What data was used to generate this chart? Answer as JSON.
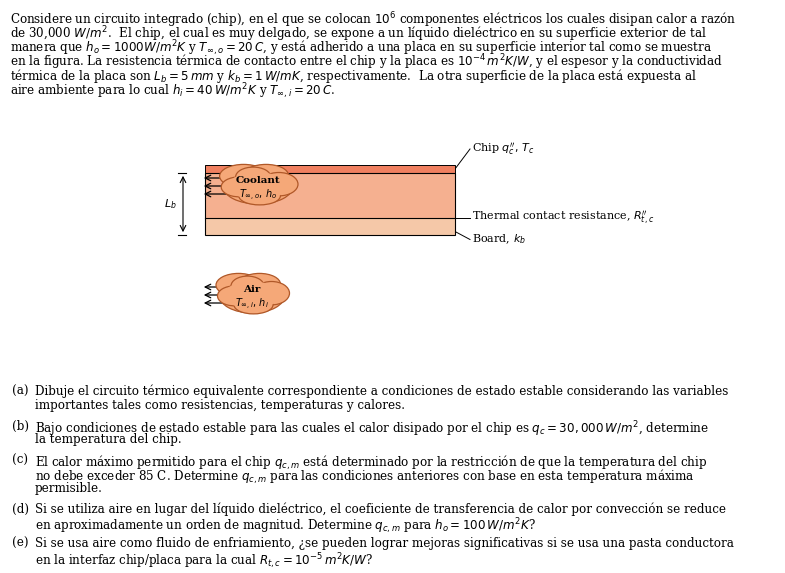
{
  "background_color": "#ffffff",
  "header_lines": [
    "Considere un circuito integrado (chip), en el que se colocan $10^{6}$ componentes eléctricos los cuales disipan calor a razón",
    "de 30,000 $W/m^2$.  El chip, el cual es muy delgado, se expone a un líquido dieléctrico en su superficie exterior de tal",
    "manera que $h_o = 1000W/m^2K$ y $T_{\\infty,o} = 20\\,C$, y está adherido a una placa en su superficie interior tal como se muestra",
    "en la figura. La resistencia térmica de contacto entre el chip y la placa es $10^{-4}\\,m^2K/W$, y el espesor y la conductividad",
    "térmica de la placa son $L_b = 5\\,mm$ y $k_b = 1\\,W/mK$, respectivamente.  La otra superficie de la placa está expuesta al",
    "aire ambiente para lo cual $h_i = 40\\,W/m^2K$ y $T_{\\infty,i} = 20\\,C$."
  ],
  "questions": [
    [
      "(a)",
      "Dibuje el circuito térmico equivalente correspondiente a condiciones de estado estable considerando las variables",
      "importantes tales como resistencias, temperaturas y calores."
    ],
    [
      "(b)",
      "Bajo condiciones de estado estable para las cuales el calor disipado por el chip es $q_c = 30,000\\,W/m^2$, determine",
      "la temperatura del chip."
    ],
    [
      "(c)",
      "El calor máximo permitido para el chip $q_{c,m}$ está determinado por la restricción de que la temperatura del chip",
      "no debe exceder 85 C. Determine $q_{c,m}$ para las condiciones anteriores con base en esta temperatura máxima",
      "permisible."
    ],
    [
      "(d)",
      "Si se utiliza aire en lugar del líquido dieléctrico, el coeficiente de transferencia de calor por convección se reduce",
      "en aproximadamente un orden de magnitud. Determine $q_{c,m}$ para $h_o = 100\\,W/m^2K$?"
    ],
    [
      "(e)",
      "Si se usa aire como fluido de enfriamiento, ¿se pueden lograr mejoras significativas si se usa una pasta conductora",
      "en la interfaz chip/placa para la cual $R_{t,c} = 10^{-5}\\,m^2K/W$?"
    ]
  ],
  "coolant_color": "#f5a878",
  "air_color": "#f5a878",
  "chip_color": "#f08060",
  "board_top_color": "#f5b090",
  "board_bot_color": "#f5c8a8",
  "chip_label": "Chip $q_c'',\\, T_c$",
  "tcr_label": "Thermal contact resistance, $R_{t,c}''$",
  "board_label": "Board, $k_b$",
  "lb_label": "$L_b$"
}
